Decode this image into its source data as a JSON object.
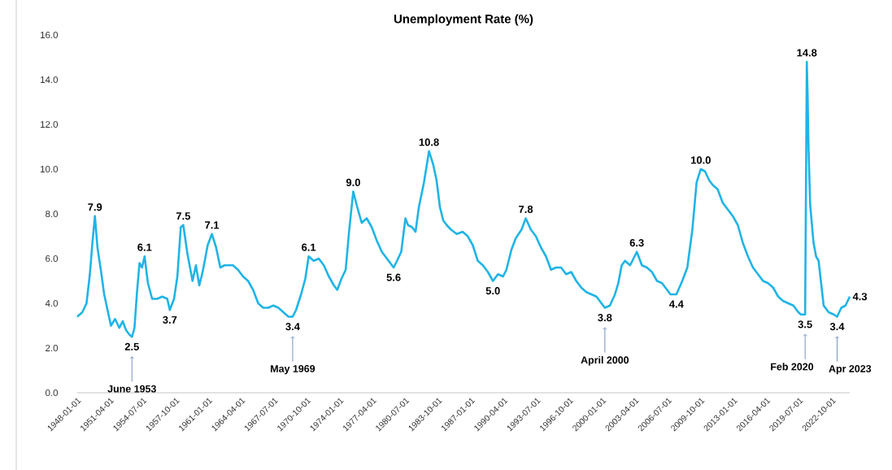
{
  "chart_data": {
    "type": "line",
    "title": "Unemployment Rate (%)",
    "x": [
      "1948-01",
      "1948-07",
      "1948-12",
      "1949-04",
      "1949-07",
      "1949-10",
      "1950-01",
      "1950-05",
      "1950-09",
      "1951-01",
      "1951-05",
      "1951-10",
      "1952-03",
      "1952-07",
      "1952-11",
      "1953-03",
      "1953-06",
      "1953-09",
      "1953-12",
      "1954-03",
      "1954-06",
      "1954-09",
      "1955-01",
      "1955-06",
      "1955-12",
      "1956-06",
      "1956-12",
      "1957-03",
      "1957-08",
      "1957-12",
      "1958-04",
      "1958-07",
      "1958-12",
      "1959-06",
      "1959-10",
      "1960-02",
      "1960-06",
      "1960-12",
      "1961-05",
      "1961-10",
      "1962-03",
      "1962-08",
      "1963-01",
      "1963-06",
      "1963-12",
      "1964-06",
      "1964-12",
      "1965-06",
      "1965-12",
      "1966-06",
      "1966-12",
      "1967-06",
      "1967-12",
      "1968-06",
      "1968-12",
      "1969-05",
      "1969-09",
      "1970-03",
      "1970-08",
      "1970-12",
      "1971-06",
      "1971-12",
      "1972-06",
      "1972-12",
      "1973-06",
      "1973-10",
      "1974-03",
      "1974-08",
      "1974-12",
      "1975-05",
      "1975-09",
      "1976-03",
      "1976-09",
      "1977-03",
      "1977-09",
      "1978-03",
      "1978-09",
      "1979-05",
      "1979-09",
      "1980-02",
      "1980-07",
      "1980-10",
      "1981-03",
      "1981-07",
      "1981-11",
      "1982-05",
      "1982-11",
      "1983-04",
      "1983-08",
      "1983-12",
      "1984-04",
      "1984-08",
      "1985-01",
      "1985-08",
      "1986-03",
      "1986-09",
      "1987-03",
      "1987-09",
      "1988-03",
      "1988-09",
      "1989-03",
      "1989-09",
      "1990-03",
      "1990-07",
      "1991-01",
      "1991-06",
      "1992-01",
      "1992-06",
      "1992-12",
      "1993-06",
      "1993-12",
      "1994-06",
      "1994-12",
      "1995-06",
      "1995-12",
      "1996-06",
      "1996-12",
      "1997-06",
      "1997-12",
      "1998-06",
      "1998-12",
      "1999-06",
      "1999-12",
      "2000-04",
      "2000-10",
      "2001-04",
      "2001-08",
      "2001-12",
      "2002-04",
      "2002-10",
      "2003-06",
      "2003-12",
      "2004-06",
      "2004-12",
      "2005-06",
      "2005-12",
      "2006-06",
      "2006-10",
      "2007-05",
      "2007-12",
      "2008-06",
      "2008-12",
      "2009-05",
      "2009-10",
      "2010-03",
      "2010-08",
      "2010-12",
      "2011-06",
      "2011-12",
      "2012-06",
      "2012-12",
      "2013-06",
      "2013-12",
      "2014-06",
      "2014-12",
      "2015-06",
      "2015-12",
      "2016-06",
      "2016-12",
      "2017-06",
      "2017-12",
      "2018-06",
      "2018-12",
      "2019-06",
      "2019-09",
      "2020-02",
      "2020-04",
      "2020-05",
      "2020-06",
      "2020-08",
      "2020-12",
      "2021-03",
      "2021-06",
      "2021-12",
      "2022-06",
      "2022-12",
      "2023-04",
      "2023-09",
      "2024-02",
      "2024-07"
    ],
    "series": [
      {
        "color": "#1fb4e6",
        "values": [
          3.4,
          3.6,
          4.0,
          5.3,
          6.7,
          7.9,
          6.5,
          5.5,
          4.4,
          3.7,
          3.0,
          3.3,
          2.9,
          3.2,
          2.8,
          2.6,
          2.5,
          2.9,
          4.5,
          5.8,
          5.6,
          6.1,
          4.9,
          4.2,
          4.2,
          4.3,
          4.2,
          3.7,
          4.2,
          5.2,
          7.4,
          7.5,
          6.2,
          5.0,
          5.7,
          4.8,
          5.4,
          6.6,
          7.1,
          6.5,
          5.6,
          5.7,
          5.7,
          5.7,
          5.5,
          5.2,
          5.0,
          4.6,
          4.0,
          3.8,
          3.8,
          3.9,
          3.8,
          3.6,
          3.4,
          3.4,
          3.7,
          4.4,
          5.1,
          6.1,
          5.9,
          6.0,
          5.7,
          5.2,
          4.8,
          4.6,
          5.1,
          5.5,
          7.2,
          9.0,
          8.4,
          7.6,
          7.8,
          7.4,
          6.8,
          6.3,
          6.0,
          5.6,
          5.9,
          6.3,
          7.8,
          7.5,
          7.4,
          7.2,
          8.3,
          9.4,
          10.8,
          10.2,
          9.5,
          8.3,
          7.7,
          7.5,
          7.3,
          7.1,
          7.2,
          7.0,
          6.6,
          5.9,
          5.7,
          5.4,
          5.0,
          5.3,
          5.2,
          5.5,
          6.4,
          6.9,
          7.3,
          7.8,
          7.3,
          7.0,
          6.5,
          6.1,
          5.5,
          5.6,
          5.6,
          5.3,
          5.4,
          5.0,
          4.7,
          4.5,
          4.4,
          4.3,
          4.0,
          3.8,
          3.9,
          4.4,
          4.9,
          5.7,
          5.9,
          5.7,
          6.3,
          5.7,
          5.6,
          5.4,
          5.0,
          4.9,
          4.6,
          4.4,
          4.4,
          5.0,
          5.6,
          7.3,
          9.4,
          10.0,
          9.9,
          9.5,
          9.3,
          9.1,
          8.5,
          8.2,
          7.9,
          7.5,
          6.7,
          6.1,
          5.6,
          5.3,
          5.0,
          4.9,
          4.7,
          4.3,
          4.1,
          4.0,
          3.9,
          3.6,
          3.5,
          3.5,
          14.8,
          13.2,
          11.0,
          8.4,
          6.7,
          6.1,
          5.9,
          3.9,
          3.6,
          3.5,
          3.4,
          3.8,
          3.9,
          4.3
        ]
      }
    ],
    "xlim": [
      "1948-01-01",
      "2024-07-01"
    ],
    "xticks": [
      "1948-01-01",
      "1951-04-01",
      "1954-07-01",
      "1957-10-01",
      "1961-01-01",
      "1964-04-01",
      "1967-07-01",
      "1970-10-01",
      "1974-01-01",
      "1977-04-01",
      "1980-07-01",
      "1983-10-01",
      "1987-01-01",
      "1990-04-01",
      "1993-07-01",
      "1996-10-01",
      "2000-01-01",
      "2003-04-01",
      "2006-07-01",
      "2009-10-01",
      "2013-01-01",
      "2016-04-01",
      "2019-07-01",
      "2022-10-01"
    ],
    "ylim": [
      0,
      16
    ],
    "yticks": [
      {
        "value": 0,
        "label": "0.0"
      },
      {
        "value": 2,
        "label": "2.0"
      },
      {
        "value": 4,
        "label": "4.0"
      },
      {
        "value": 6,
        "label": "6.0"
      },
      {
        "value": 8,
        "label": "8.0"
      },
      {
        "value": 10,
        "label": "10.0"
      },
      {
        "value": 12,
        "label": "12.0"
      },
      {
        "value": 14,
        "label": "14.0"
      },
      {
        "value": 16,
        "label": "16.0"
      }
    ],
    "grid": false,
    "annotations": [
      {
        "text": "7.9",
        "x": "1949-10",
        "y": 7.9
      },
      {
        "text": "2.5",
        "x": "1953-06",
        "y": 2.5
      },
      "June 1953",
      {
        "text": "6.1",
        "x": "1954-09",
        "y": 6.1
      },
      {
        "text": "3.7",
        "x": "1957-03",
        "y": 3.7
      },
      {
        "text": "7.5",
        "x": "1958-07",
        "y": 7.5
      },
      {
        "text": "7.1",
        "x": "1961-05",
        "y": 7.1
      },
      {
        "text": "3.4",
        "x": "1969-05",
        "y": 3.4
      },
      "May 1969",
      {
        "text": "6.1",
        "x": "1970-12",
        "y": 6.1
      },
      {
        "text": "9.0",
        "x": "1975-05",
        "y": 9.0
      },
      {
        "text": "5.6",
        "x": "1979-05",
        "y": 5.6
      },
      {
        "text": "10.8",
        "x": "1982-11",
        "y": 10.8
      },
      {
        "text": "5.0",
        "x": "1989-03",
        "y": 5.0
      },
      {
        "text": "7.8",
        "x": "1992-06",
        "y": 7.8
      },
      {
        "text": "3.8",
        "x": "2000-04",
        "y": 3.8
      },
      "April 2000",
      {
        "text": "6.3",
        "x": "2003-06",
        "y": 6.3
      },
      {
        "text": "4.4",
        "x": "2007-05",
        "y": 4.4
      },
      {
        "text": "10.0",
        "x": "2009-10",
        "y": 10.0
      },
      {
        "text": "3.5",
        "x": "2020-02",
        "y": 3.5
      },
      "Feb 2020",
      {
        "text": "14.8",
        "x": "2020-04",
        "y": 14.8
      },
      {
        "text": "3.4",
        "x": "2023-04",
        "y": 3.4
      },
      "Apr 2023",
      {
        "text": "4.3",
        "x": "2024-07",
        "y": 4.3
      }
    ]
  }
}
